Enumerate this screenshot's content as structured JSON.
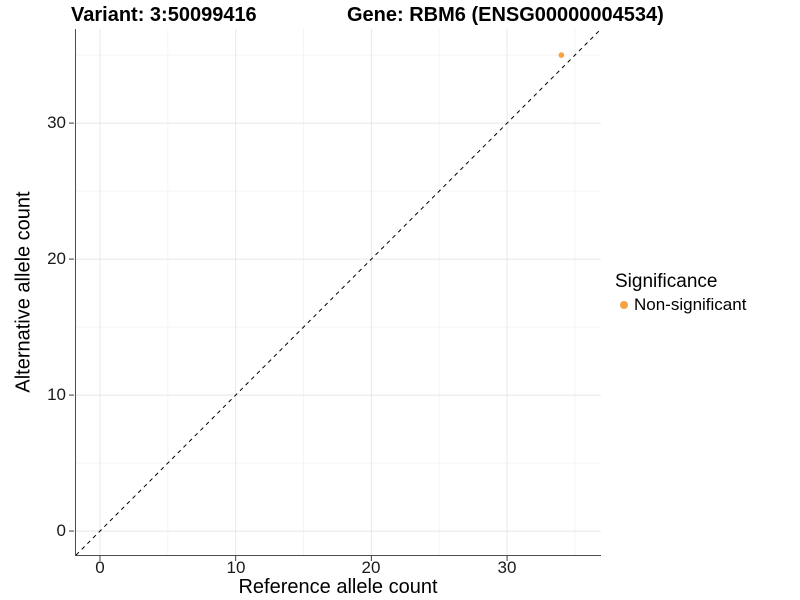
{
  "title": {
    "variant": "Variant: 3:50099416",
    "gene": "Gene: RBM6 (ENSG00000004534)"
  },
  "axes": {
    "x_label": "Reference allele count",
    "y_label": "Alternative allele count"
  },
  "legend": {
    "title": "Significance",
    "items": [
      {
        "label": "Non-significant",
        "color": "#F9A242"
      }
    ]
  },
  "colors": {
    "grid_major": "#E8E8E8",
    "grid_minor": "#F4F4F4",
    "axis": "#4D4D4D",
    "tick": "#404040",
    "reference_line": "#000000",
    "background": "#FFFFFF"
  },
  "chart_data": {
    "type": "scatter",
    "title": "Variant: 3:50099416  /  Gene: RBM6 (ENSG00000004534)",
    "xlabel": "Reference allele count",
    "ylabel": "Alternative allele count",
    "series": [
      {
        "name": "Non-significant",
        "color": "#F9A242",
        "points": [
          {
            "x": 34,
            "y": 35
          }
        ]
      }
    ],
    "reference_line": {
      "type": "identity",
      "equation": "y = x",
      "style": "dashed",
      "color": "#000000"
    },
    "x_major_ticks": [
      0,
      10,
      20,
      30
    ],
    "y_major_ticks": [
      0,
      10,
      20,
      30
    ],
    "x_minor_ticks": [
      5,
      15,
      25,
      35
    ],
    "y_minor_ticks": [
      5,
      15,
      25,
      35
    ],
    "xlim": [
      -1.84,
      36.92
    ],
    "ylim": [
      -1.76,
      36.92
    ],
    "grid": true,
    "legend_position": "right",
    "legend_title": "Significance"
  }
}
